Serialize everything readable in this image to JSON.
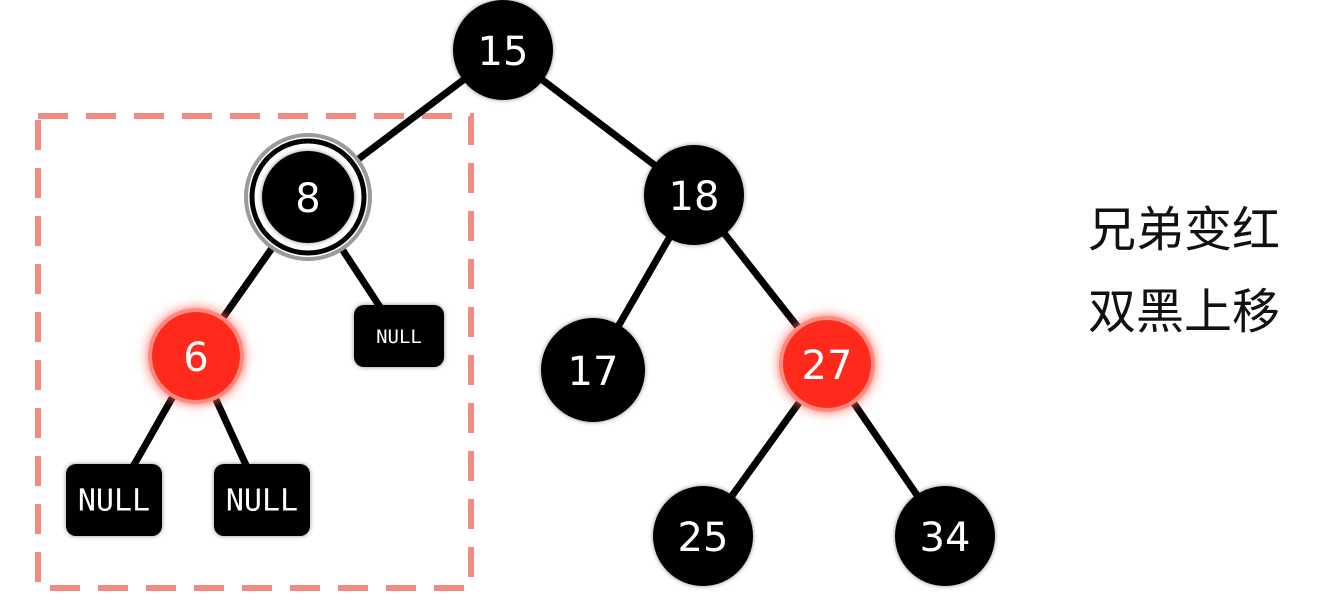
{
  "tree": {
    "nodes": [
      {
        "id": "n15",
        "label": "15",
        "color": "black"
      },
      {
        "id": "n8",
        "label": "8",
        "color": "black",
        "double_black": true
      },
      {
        "id": "n18",
        "label": "18",
        "color": "black"
      },
      {
        "id": "n6",
        "label": "6",
        "color": "red"
      },
      {
        "id": "null8",
        "label": "NULL",
        "color": "black",
        "kind": "null-leaf"
      },
      {
        "id": "n17",
        "label": "17",
        "color": "black"
      },
      {
        "id": "n27",
        "label": "27",
        "color": "red"
      },
      {
        "id": "null6a",
        "label": "NULL",
        "color": "black",
        "kind": "null-leaf"
      },
      {
        "id": "null6b",
        "label": "NULL",
        "color": "black",
        "kind": "null-leaf"
      },
      {
        "id": "n25",
        "label": "25",
        "color": "black"
      },
      {
        "id": "n34",
        "label": "34",
        "color": "black"
      }
    ],
    "edges": [
      [
        "n15",
        "n8"
      ],
      [
        "n15",
        "n18"
      ],
      [
        "n8",
        "n6"
      ],
      [
        "n8",
        "null8"
      ],
      [
        "n18",
        "n17"
      ],
      [
        "n18",
        "n27"
      ],
      [
        "n6",
        "null6a"
      ],
      [
        "n6",
        "null6b"
      ],
      [
        "n27",
        "n25"
      ],
      [
        "n27",
        "n34"
      ]
    ],
    "highlight_box": {
      "style": "dashed",
      "color": "#f28b82"
    }
  },
  "caption": {
    "line1": "兄弟变红",
    "line2": "双黑上移"
  },
  "colors": {
    "black_node": "#000000",
    "red_node": "#ff2a1a",
    "red_glow": "#ff8a80",
    "edge": "#000000",
    "dashed_box": "#f28b82"
  }
}
